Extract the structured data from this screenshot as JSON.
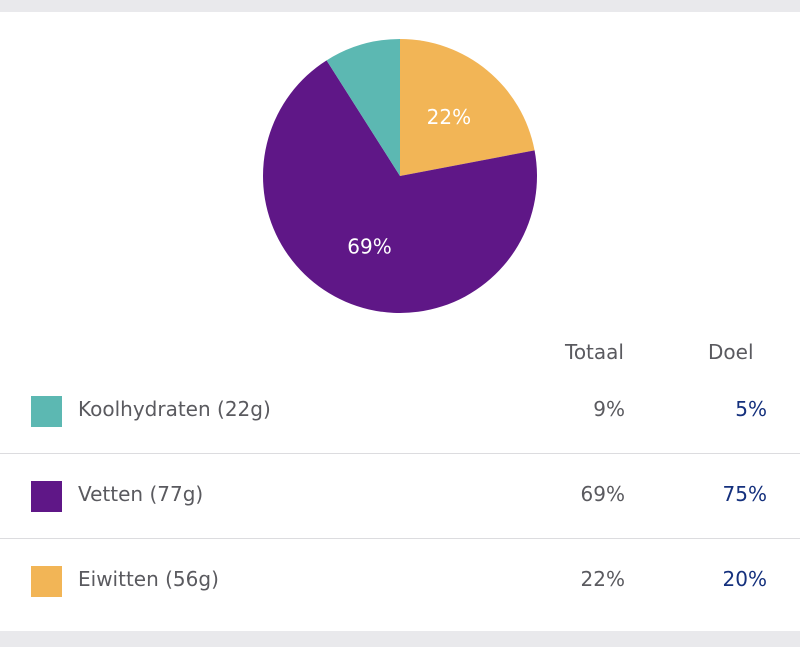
{
  "chart_data": {
    "type": "pie",
    "slices": [
      {
        "label": "Koolhydraten (22g)",
        "value": 9,
        "color": "#5cb8b2",
        "data_label": ""
      },
      {
        "label": "Vetten (77g)",
        "value": 69,
        "color": "#5f1787",
        "data_label": "69%"
      },
      {
        "label": "Eiwitten (56g)",
        "value": 22,
        "color": "#f2b556",
        "data_label": "22%"
      }
    ]
  },
  "table": {
    "headers": {
      "total": "Totaal",
      "goal": "Doel"
    },
    "rows": [
      {
        "label": "Koolhydraten (22g)",
        "total": "9%",
        "goal": "5%",
        "color": "#5cb8b2"
      },
      {
        "label": "Vetten (77g)",
        "total": "69%",
        "goal": "75%",
        "color": "#5f1787"
      },
      {
        "label": "Eiwitten (56g)",
        "total": "22%",
        "goal": "20%",
        "color": "#f2b556"
      }
    ]
  }
}
